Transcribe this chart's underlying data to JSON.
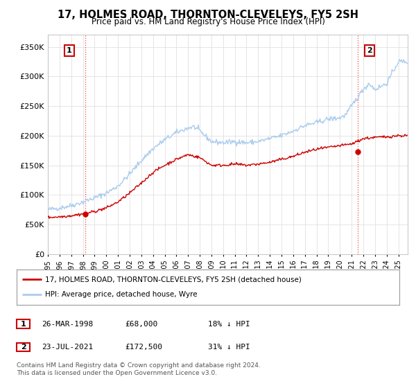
{
  "title": "17, HOLMES ROAD, THORNTON-CLEVELEYS, FY5 2SH",
  "subtitle": "Price paid vs. HM Land Registry's House Price Index (HPI)",
  "ylim": [
    0,
    370000
  ],
  "xlim_start": 1995.0,
  "xlim_end": 2025.8,
  "x_tick_years": [
    1995,
    1996,
    1997,
    1998,
    1999,
    2000,
    2001,
    2002,
    2003,
    2004,
    2005,
    2006,
    2007,
    2008,
    2009,
    2010,
    2011,
    2012,
    2013,
    2014,
    2015,
    2016,
    2017,
    2018,
    2019,
    2020,
    2021,
    2022,
    2023,
    2024,
    2025
  ],
  "sale1_x": 1998.23,
  "sale1_y": 68000,
  "sale2_x": 2021.55,
  "sale2_y": 172500,
  "hpi_color": "#aaccee",
  "price_color": "#cc0000",
  "vline_color": "#ff4444",
  "legend_label_price": "17, HOLMES ROAD, THORNTON-CLEVELEYS, FY5 2SH (detached house)",
  "legend_label_hpi": "HPI: Average price, detached house, Wyre",
  "table_row1": [
    "1",
    "26-MAR-1998",
    "£68,000",
    "18% ↓ HPI"
  ],
  "table_row2": [
    "2",
    "23-JUL-2021",
    "£172,500",
    "31% ↓ HPI"
  ],
  "footer": "Contains HM Land Registry data © Crown copyright and database right 2024.\nThis data is licensed under the Open Government Licence v3.0.",
  "bg_color": "#ffffff",
  "grid_color": "#e0e0e0"
}
